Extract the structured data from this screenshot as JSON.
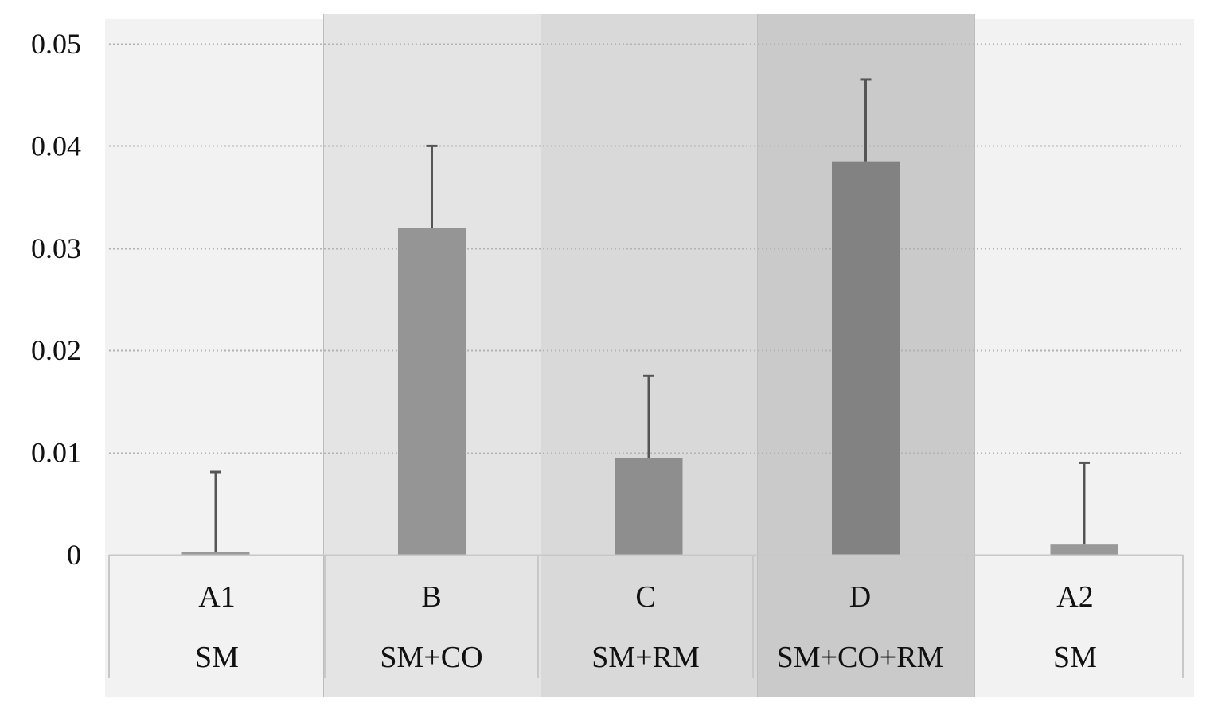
{
  "chart_data": {
    "type": "bar",
    "title": "",
    "xlabel": "",
    "ylabel": "",
    "ylim": [
      0,
      0.05
    ],
    "yticks": [
      0,
      0.01,
      0.02,
      0.03,
      0.04,
      0.05
    ],
    "ytick_labels": [
      "0",
      "0.01",
      "0.02",
      "0.03",
      "0.04",
      "0.05"
    ],
    "grid": true,
    "categories": [
      {
        "code": "A1",
        "label": "SM",
        "value": 0.0003,
        "error": 0.0078
      },
      {
        "code": "B",
        "label": "SM+CO",
        "value": 0.032,
        "error": 0.008
      },
      {
        "code": "C",
        "label": "SM+RM",
        "value": 0.0095,
        "error": 0.008
      },
      {
        "code": "D",
        "label": "SM+CO+RM",
        "value": 0.0385,
        "error": 0.008
      },
      {
        "code": "A2",
        "label": "SM",
        "value": 0.001,
        "error": 0.008
      }
    ]
  },
  "colors": {
    "panels": [
      "#f2f2f2",
      "#e4e4e4",
      "#d9d9d9",
      "#cacaca",
      "#f2f2f2"
    ],
    "bars": [
      "#999999",
      "#959595",
      "#8e8e8e",
      "#828282",
      "#999999"
    ],
    "error_bar": "#555555",
    "grid": "#b3b3b3",
    "axis": "#c8c8c8",
    "text": "#111111"
  }
}
